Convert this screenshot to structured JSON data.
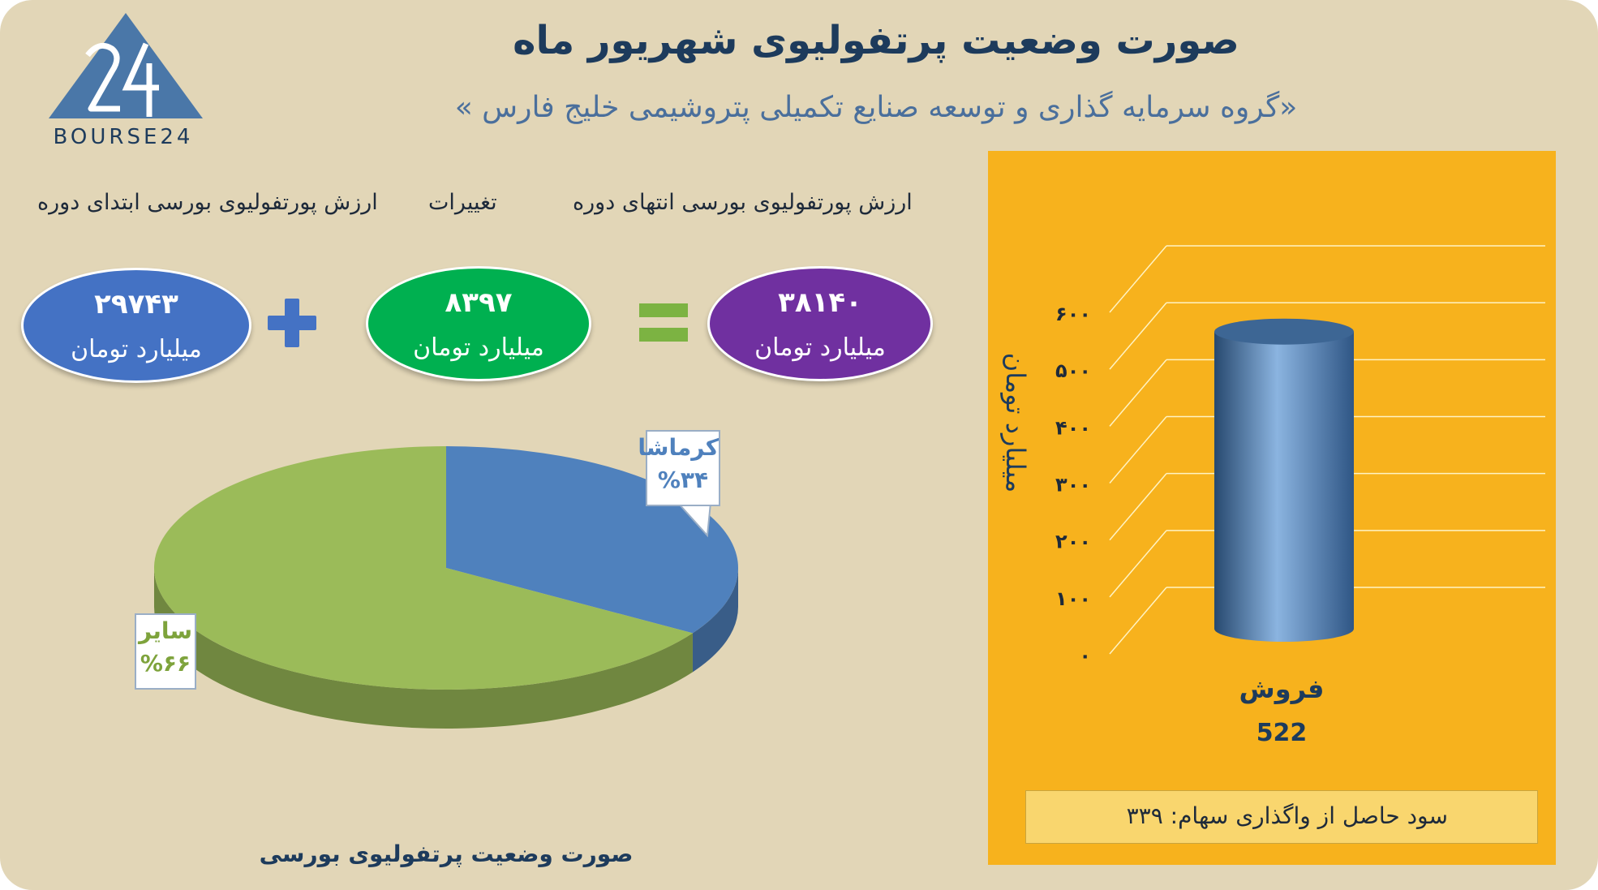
{
  "header": {
    "title": "صورت وضعیت پرتفولیوی شهریور ماه",
    "subtitle": "«گروه سرمایه گذاری و توسعه صنایع تکمیلی پتروشیمی خلیج فارس »",
    "logo_text": "BOURSE24",
    "logo_mark": "24"
  },
  "summary": {
    "start_label": "ارزش پورتفولیوی بورسی ابتدای دوره",
    "change_label": "تغییرات",
    "end_label": "ارزش پورتفولیوی بورسی انتهای دوره",
    "start_value": "۲۹۷۴۳",
    "change_value": "۸۳۹۷",
    "end_value": "۳۸۱۴۰",
    "unit": "میلیارد تومان",
    "colors": {
      "start": "#4472c4",
      "change": "#00b050",
      "end": "#7030a0"
    }
  },
  "chart_data": [
    {
      "type": "pie",
      "title": "صورت وضعیت پرتفولیوی بورسی",
      "categories": [
        "کرماشا",
        "سایر"
      ],
      "values": [
        34,
        66
      ],
      "labels": [
        "%۳۴",
        "%۶۶"
      ],
      "colors": [
        "#4f81bd",
        "#9bbb59"
      ]
    },
    {
      "type": "bar",
      "categories": [
        "فروش"
      ],
      "values": [
        522
      ],
      "value_label": "522",
      "ylabel": "میلیارد تومان",
      "ylim": [
        0,
        600
      ],
      "yticks": [
        0,
        100,
        200,
        300,
        400,
        500,
        600
      ],
      "ytick_labels": [
        "۰",
        "۱۰۰",
        "۲۰۰",
        "۳۰۰",
        "۴۰۰",
        "۵۰۰",
        "۶۰۰"
      ],
      "grid": true,
      "bar_color": "#5b86b8",
      "background": "#f7b21d"
    }
  ],
  "note": {
    "label": "سود حاصل از واگذاری سهام:",
    "value": "۳۳۹"
  }
}
